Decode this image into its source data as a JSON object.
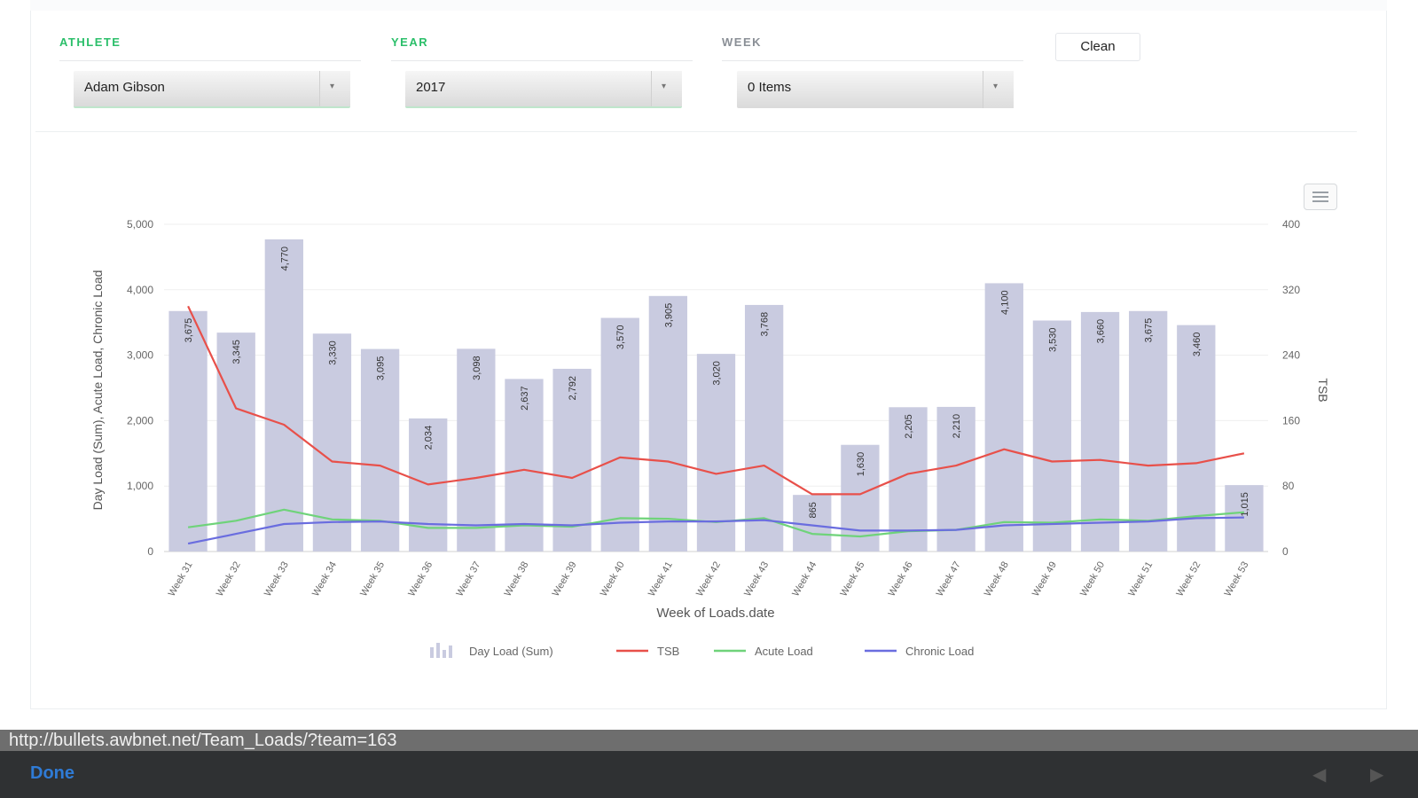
{
  "filters": {
    "athlete": {
      "label": "ATHLETE",
      "value": "Adam Gibson",
      "color": "#2bbf6a"
    },
    "year": {
      "label": "YEAR",
      "value": "2017",
      "color": "#2bbf6a"
    },
    "week": {
      "label": "WEEK",
      "value": "0 Items",
      "color": "#8a8f96"
    },
    "clean_label": "Clean"
  },
  "browser": {
    "url": "http://bullets.awbnet.net/Team_Loads/?team=163",
    "done_label": "Done",
    "back_icon": "back-arrow-icon",
    "forward_icon": "forward-arrow-icon"
  },
  "chart_data": {
    "type": "bar",
    "xlabel": "Week of Loads.date",
    "ylabel": "Day Load (Sum), Acute Load, Chronic Load",
    "y2label": "TSB",
    "ylim": [
      0,
      5000
    ],
    "y2lim": [
      0,
      400
    ],
    "yticks": [
      "0",
      "1,000",
      "2,000",
      "3,000",
      "4,000",
      "5,000"
    ],
    "y2ticks": [
      "0",
      "80",
      "160",
      "240",
      "320",
      "400"
    ],
    "categories": [
      "Week 31",
      "Week 32",
      "Week 33",
      "Week 34",
      "Week 35",
      "Week 36",
      "Week 37",
      "Week 38",
      "Week 39",
      "Week 40",
      "Week 41",
      "Week 42",
      "Week 43",
      "Week 44",
      "Week 45",
      "Week 46",
      "Week 47",
      "Week 48",
      "Week 49",
      "Week 50",
      "Week 51",
      "Week 52",
      "Week 53"
    ],
    "bar_labels": [
      "3,675",
      "3,345",
      "4,770",
      "3,330",
      "3,095",
      "2,034",
      "3,098",
      "2,637",
      "2,792",
      "3,570",
      "3,905",
      "3,020",
      "3,768",
      "865",
      "1,630",
      "2,205",
      "2,210",
      "4,100",
      "3,530",
      "3,660",
      "3,675",
      "3,460",
      "1,015"
    ],
    "bar_values": [
      3675,
      3345,
      4770,
      3330,
      3095,
      2034,
      3098,
      2637,
      2792,
      3570,
      3905,
      3020,
      3768,
      865,
      1630,
      2205,
      2210,
      4100,
      3530,
      3660,
      3675,
      3460,
      1015
    ],
    "series": [
      {
        "name": "Day Load (Sum)",
        "axis": "y",
        "color": "#c9cbe0",
        "kind": "bar"
      },
      {
        "name": "TSB",
        "axis": "y2",
        "color": "#e8504a",
        "kind": "line",
        "values": [
          300,
          175,
          155,
          110,
          105,
          82,
          90,
          100,
          90,
          115,
          110,
          95,
          105,
          70,
          70,
          95,
          105,
          125,
          110,
          112,
          105,
          108,
          120
        ]
      },
      {
        "name": "Acute Load",
        "axis": "y",
        "color": "#6fd37a",
        "kind": "line",
        "values": [
          370,
          470,
          640,
          490,
          470,
          360,
          360,
          400,
          380,
          510,
          500,
          450,
          510,
          270,
          230,
          310,
          330,
          450,
          440,
          490,
          470,
          540,
          600
        ]
      },
      {
        "name": "Chronic Load",
        "axis": "y",
        "color": "#6a6ddf",
        "kind": "line",
        "values": [
          120,
          270,
          420,
          450,
          460,
          420,
          400,
          420,
          400,
          440,
          460,
          460,
          480,
          400,
          320,
          320,
          330,
          400,
          420,
          440,
          460,
          510,
          520
        ]
      }
    ],
    "grid": true,
    "legend": "bottom-center"
  }
}
